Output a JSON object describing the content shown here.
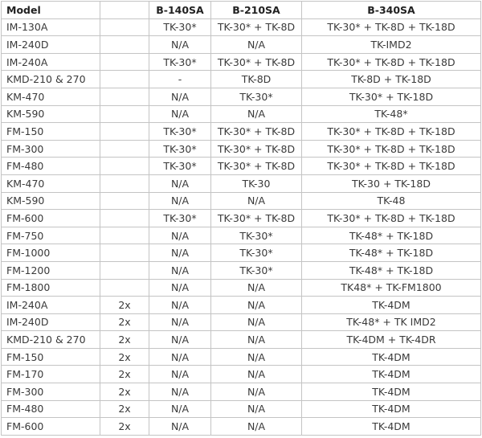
{
  "table": {
    "header": [
      "Model",
      null,
      "B-140SA",
      "B-210SA",
      "B-340SA"
    ],
    "rows": [
      [
        "IM-130A",
        null,
        "TK-30*",
        "TK-30* + TK-8D",
        "TK-30* + TK-8D + TK-18D"
      ],
      [
        "IM-240D",
        null,
        "N/A",
        "N/A",
        "TK-IMD2"
      ],
      [
        "IM-240A",
        null,
        "TK-30*",
        "TK-30* + TK-8D",
        "TK-30* + TK-8D + TK-18D"
      ],
      [
        "KMD-210 & 270",
        null,
        "-",
        "TK-8D",
        "TK-8D + TK-18D"
      ],
      [
        "KM-470",
        null,
        "N/A",
        "TK-30*",
        "TK-30* + TK-18D"
      ],
      [
        "KM-590",
        null,
        "N/A",
        "N/A",
        "TK-48*"
      ],
      [
        "FM-150",
        null,
        "TK-30*",
        "TK-30* + TK-8D",
        "TK-30* + TK-8D + TK-18D"
      ],
      [
        "FM-300",
        null,
        "TK-30*",
        "TK-30* + TK-8D",
        "TK-30* + TK-8D + TK-18D"
      ],
      [
        "FM-480",
        null,
        "TK-30*",
        "TK-30* + TK-8D",
        "TK-30* + TK-8D + TK-18D"
      ],
      [
        "KM-470",
        null,
        "N/A",
        "TK-30",
        "TK-30 + TK-18D"
      ],
      [
        "KM-590",
        null,
        "N/A",
        "N/A",
        "TK-48"
      ],
      [
        "FM-600",
        null,
        "TK-30*",
        "TK-30* + TK-8D",
        "TK-30* + TK-8D + TK-18D"
      ],
      [
        "FM-750",
        null,
        "N/A",
        "TK-30*",
        "TK-48* + TK-18D"
      ],
      [
        "FM-1000",
        null,
        "N/A",
        "TK-30*",
        "TK-48* + TK-18D"
      ],
      [
        "FM-1200",
        null,
        "N/A",
        "TK-30*",
        "TK-48* + TK-18D"
      ],
      [
        "FM-1800",
        null,
        "N/A",
        "N/A",
        "TK48* + TK-FM1800"
      ],
      [
        "IM-240A",
        "2x",
        "N/A",
        "N/A",
        "TK-4DM"
      ],
      [
        "IM-240D",
        "2x",
        "N/A",
        "N/A",
        "TK-48* + TK IMD2"
      ],
      [
        "KMD-210 & 270",
        "2x",
        "N/A",
        "N/A",
        "TK-4DM + TK-4DR"
      ],
      [
        "FM-150",
        "2x",
        "N/A",
        "N/A",
        "TK-4DM"
      ],
      [
        "FM-170",
        "2x",
        "N/A",
        "N/A",
        "TK-4DM"
      ],
      [
        "FM-300",
        "2x",
        "N/A",
        "N/A",
        "TK-4DM"
      ],
      [
        "FM-480",
        "2x",
        "N/A",
        "N/A",
        "TK-4DM"
      ],
      [
        "FM-600",
        "2x",
        "N/A",
        "N/A",
        "TK-4DM"
      ]
    ]
  }
}
